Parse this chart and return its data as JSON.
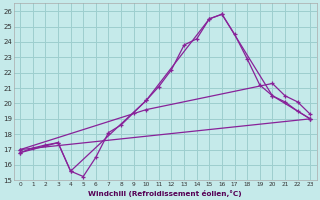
{
  "background_color": "#c5eaea",
  "grid_color": "#9dcece",
  "line_color": "#882299",
  "xlim": [
    -0.5,
    23.5
  ],
  "ylim": [
    15,
    26.5
  ],
  "xticks": [
    0,
    1,
    2,
    3,
    4,
    5,
    6,
    7,
    8,
    9,
    10,
    11,
    12,
    13,
    14,
    15,
    16,
    17,
    18,
    19,
    20,
    21,
    22,
    23
  ],
  "yticks": [
    15,
    16,
    17,
    18,
    19,
    20,
    21,
    22,
    23,
    24,
    25,
    26
  ],
  "xlabel": "Windchill (Refroidissement éolien,°C)",
  "curve1_x": [
    0,
    1,
    2,
    3,
    4,
    5,
    6,
    7,
    8,
    9,
    10,
    11,
    12,
    13,
    14,
    15,
    16,
    17,
    18,
    19,
    20,
    21,
    22,
    23
  ],
  "curve1_y": [
    16.8,
    17.1,
    17.3,
    17.45,
    15.6,
    15.25,
    16.5,
    18.1,
    18.6,
    19.4,
    20.2,
    21.1,
    22.2,
    23.8,
    24.2,
    25.5,
    25.8,
    24.5,
    22.9,
    21.2,
    20.5,
    20.1,
    19.5,
    19.0
  ],
  "curve2_x": [
    0,
    3,
    4,
    10,
    15,
    16,
    20,
    23
  ],
  "curve2_y": [
    16.8,
    17.45,
    15.6,
    20.2,
    25.5,
    25.8,
    20.5,
    19.0
  ],
  "curve3_x": [
    0,
    10,
    20,
    21,
    22,
    23
  ],
  "curve3_y": [
    17.0,
    19.6,
    21.3,
    20.5,
    20.1,
    19.3
  ],
  "curve4_x": [
    0,
    23
  ],
  "curve4_y": [
    17.0,
    19.0
  ]
}
